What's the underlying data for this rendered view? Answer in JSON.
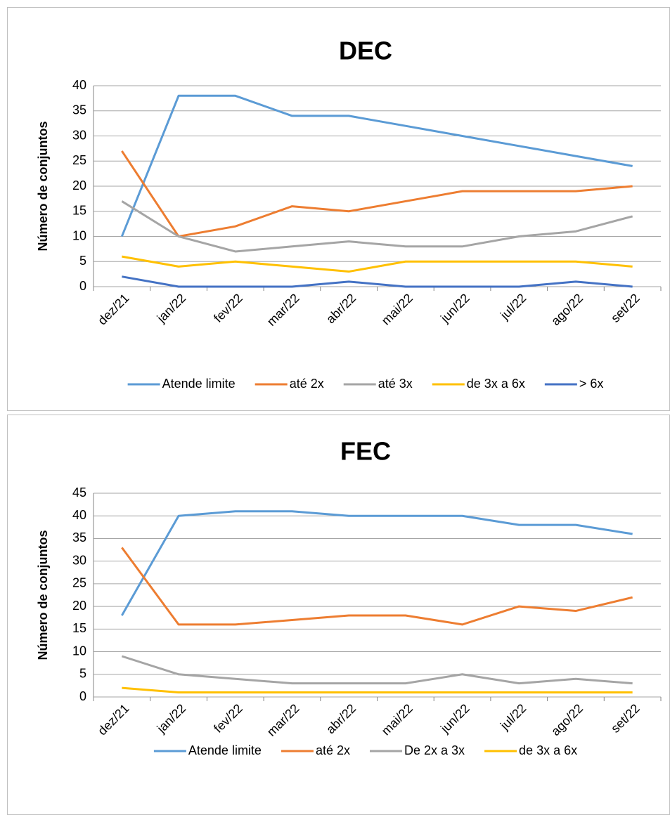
{
  "chart_data": [
    {
      "type": "line",
      "title": "DEC",
      "y_label": "Número de conjuntos",
      "categories": [
        "dez/21",
        "jan/22",
        "fev/22",
        "mar/22",
        "abr/22",
        "mai/22",
        "jun/22",
        "jul/22",
        "ago/22",
        "set/22"
      ],
      "ylim": [
        0,
        40
      ],
      "yticks": [
        0,
        5,
        10,
        15,
        20,
        25,
        30,
        35,
        40
      ],
      "grid": true,
      "series": [
        {
          "name": "Atende limite",
          "color": "#5b9bd5",
          "values": [
            10,
            38,
            38,
            34,
            34,
            32,
            30,
            28,
            26,
            24
          ]
        },
        {
          "name": "até 2x",
          "color": "#ed7d31",
          "values": [
            27,
            10,
            12,
            16,
            15,
            17,
            19,
            19,
            19,
            20
          ]
        },
        {
          "name": "até 3x",
          "color": "#a5a5a5",
          "values": [
            17,
            10,
            7,
            8,
            9,
            8,
            8,
            10,
            11,
            14
          ]
        },
        {
          "name": "de 3x a 6x",
          "color": "#ffc000",
          "values": [
            6,
            4,
            5,
            4,
            3,
            5,
            5,
            5,
            5,
            4
          ]
        },
        {
          "name": "> 6x",
          "color": "#4472c4",
          "values": [
            2,
            0,
            0,
            0,
            1,
            0,
            0,
            0,
            1,
            0
          ]
        }
      ]
    },
    {
      "type": "line",
      "title": "FEC",
      "y_label": "Número de conjuntos",
      "categories": [
        "dez/21",
        "jan/22",
        "fev/22",
        "mar/22",
        "abr/22",
        "mai/22",
        "jun/22",
        "jul/22",
        "ago/22",
        "set/22"
      ],
      "ylim": [
        0,
        45
      ],
      "yticks": [
        0,
        5,
        10,
        15,
        20,
        25,
        30,
        35,
        40,
        45
      ],
      "grid": true,
      "series": [
        {
          "name": "Atende limite",
          "color": "#5b9bd5",
          "values": [
            18,
            40,
            41,
            41,
            40,
            40,
            40,
            38,
            38,
            36
          ]
        },
        {
          "name": "até 2x",
          "color": "#ed7d31",
          "values": [
            33,
            16,
            16,
            17,
            18,
            18,
            16,
            20,
            19,
            22
          ]
        },
        {
          "name": "De 2x a 3x",
          "color": "#a5a5a5",
          "values": [
            9,
            5,
            4,
            3,
            3,
            3,
            5,
            3,
            4,
            3
          ]
        },
        {
          "name": "de 3x a 6x",
          "color": "#ffc000",
          "values": [
            2,
            1,
            1,
            1,
            1,
            1,
            1,
            1,
            1,
            1
          ]
        }
      ]
    }
  ]
}
